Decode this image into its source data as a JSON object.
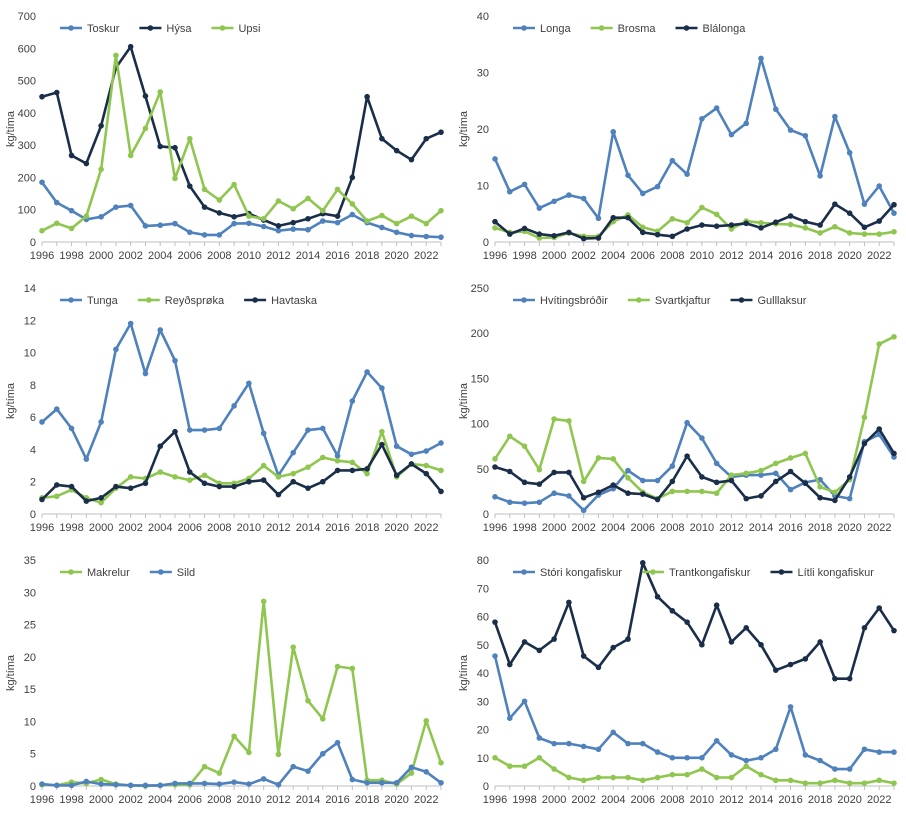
{
  "colors": {
    "blue": "#4f81bd",
    "navy": "#1a2e4a",
    "green": "#8fc64f"
  },
  "chart_data": [
    {
      "type": "line",
      "ylabel": "kg/tíma",
      "ylim": [
        0,
        700
      ],
      "yticks": [
        0,
        100,
        200,
        300,
        400,
        500,
        600,
        700
      ],
      "x": [
        1996,
        1997,
        1998,
        1999,
        2000,
        2001,
        2002,
        2003,
        2004,
        2005,
        2006,
        2007,
        2008,
        2009,
        2010,
        2011,
        2012,
        2013,
        2014,
        2015,
        2016,
        2017,
        2018,
        2019,
        2020,
        2021,
        2022,
        2023
      ],
      "xticks": [
        1996,
        1998,
        2000,
        2002,
        2004,
        2006,
        2008,
        2010,
        2012,
        2014,
        2016,
        2018,
        2020,
        2022
      ],
      "legend": "top",
      "series": [
        {
          "name": "Toskur",
          "color": "#4f81bd",
          "values": [
            185,
            122,
            97,
            70,
            78,
            108,
            113,
            50,
            52,
            57,
            30,
            22,
            22,
            57,
            58,
            48,
            35,
            40,
            38,
            65,
            60,
            85,
            60,
            45,
            30,
            20,
            17,
            15
          ]
        },
        {
          "name": "Hýsa",
          "color": "#1a2e4a",
          "values": [
            450,
            463,
            268,
            243,
            360,
            540,
            605,
            452,
            296,
            292,
            173,
            108,
            90,
            78,
            88,
            68,
            50,
            60,
            72,
            88,
            80,
            200,
            450,
            320,
            283,
            255,
            320,
            340
          ]
        },
        {
          "name": "Upsi",
          "color": "#8fc64f",
          "values": [
            35,
            58,
            42,
            80,
            225,
            578,
            268,
            352,
            465,
            197,
            320,
            163,
            130,
            178,
            80,
            72,
            127,
            103,
            135,
            97,
            163,
            118,
            65,
            82,
            57,
            80,
            57,
            97
          ]
        }
      ]
    },
    {
      "type": "line",
      "ylabel": "kg/tíma",
      "ylim": [
        0,
        40
      ],
      "yticks": [
        0,
        10,
        20,
        30,
        40
      ],
      "x": [
        1996,
        1997,
        1998,
        1999,
        2000,
        2001,
        2002,
        2003,
        2004,
        2005,
        2006,
        2007,
        2008,
        2009,
        2010,
        2011,
        2012,
        2013,
        2014,
        2015,
        2016,
        2017,
        2018,
        2019,
        2020,
        2021,
        2022,
        2023
      ],
      "xticks": [
        1996,
        1998,
        2000,
        2002,
        2004,
        2006,
        2008,
        2010,
        2012,
        2014,
        2016,
        2018,
        2020,
        2022
      ],
      "legend": "top",
      "series": [
        {
          "name": "Longa",
          "color": "#4f81bd",
          "values": [
            14.7,
            8.9,
            10.2,
            6.0,
            7.2,
            8.3,
            7.7,
            4.2,
            19.5,
            11.8,
            8.6,
            9.8,
            14.4,
            12.0,
            21.8,
            23.7,
            19.0,
            21.0,
            32.5,
            23.5,
            19.8,
            18.8,
            11.7,
            22.2,
            15.8,
            6.7,
            9.9,
            5.1
          ]
        },
        {
          "name": "Brosma",
          "color": "#8fc64f",
          "values": [
            2.5,
            1.7,
            1.9,
            0.7,
            0.8,
            1.6,
            1.0,
            1.0,
            3.6,
            4.8,
            2.6,
            1.9,
            4.1,
            3.4,
            6.1,
            4.9,
            2.3,
            3.7,
            3.4,
            3.2,
            3.1,
            2.5,
            1.6,
            2.7,
            1.6,
            1.4,
            1.4,
            1.8
          ]
        },
        {
          "name": "Blálonga",
          "color": "#1a2e4a",
          "values": [
            3.6,
            1.4,
            2.4,
            1.4,
            1.1,
            1.7,
            0.6,
            0.7,
            4.3,
            4.3,
            1.7,
            1.3,
            1.0,
            2.3,
            3.0,
            2.8,
            3.0,
            3.3,
            2.5,
            3.5,
            4.6,
            3.6,
            3.0,
            6.7,
            5.1,
            2.6,
            3.7,
            6.6
          ]
        }
      ]
    },
    {
      "type": "line",
      "ylabel": "kg/tíma",
      "ylim": [
        0,
        14
      ],
      "yticks": [
        0,
        2,
        4,
        6,
        8,
        10,
        12,
        14
      ],
      "x": [
        1996,
        1997,
        1998,
        1999,
        2000,
        2001,
        2002,
        2003,
        2004,
        2005,
        2006,
        2007,
        2008,
        2009,
        2010,
        2011,
        2012,
        2013,
        2014,
        2015,
        2016,
        2017,
        2018,
        2019,
        2020,
        2021,
        2022,
        2023
      ],
      "xticks": [
        1996,
        1998,
        2000,
        2002,
        2004,
        2006,
        2008,
        2010,
        2012,
        2014,
        2016,
        2018,
        2020,
        2022
      ],
      "legend": "top",
      "series": [
        {
          "name": "Tunga",
          "color": "#4f81bd",
          "values": [
            5.7,
            6.5,
            5.3,
            3.4,
            5.7,
            10.2,
            11.8,
            8.7,
            11.4,
            9.5,
            5.2,
            5.2,
            5.3,
            6.7,
            8.1,
            5.0,
            2.4,
            3.8,
            5.2,
            5.3,
            3.6,
            7.0,
            8.8,
            7.8,
            4.2,
            3.7,
            3.9,
            4.4
          ]
        },
        {
          "name": "Reyðsprøka",
          "color": "#8fc64f",
          "values": [
            1.0,
            1.1,
            1.5,
            1.0,
            0.7,
            1.6,
            2.3,
            2.2,
            2.6,
            2.3,
            2.1,
            2.4,
            1.9,
            1.9,
            2.2,
            3.0,
            2.3,
            2.5,
            2.9,
            3.5,
            3.3,
            3.2,
            2.5,
            5.1,
            2.3,
            3.1,
            3.0,
            2.7
          ]
        },
        {
          "name": "Havtaska",
          "color": "#1a2e4a",
          "values": [
            0.9,
            1.8,
            1.7,
            0.8,
            1.0,
            1.7,
            1.6,
            1.9,
            4.2,
            5.1,
            2.6,
            1.9,
            1.7,
            1.7,
            2.0,
            2.1,
            1.2,
            2.0,
            1.6,
            2.0,
            2.7,
            2.7,
            2.8,
            4.3,
            2.4,
            3.1,
            2.5,
            1.4
          ]
        }
      ]
    },
    {
      "type": "line",
      "ylabel": "kg/tíma",
      "ylim": [
        0,
        250
      ],
      "yticks": [
        0,
        50,
        100,
        150,
        200,
        250
      ],
      "x": [
        1996,
        1997,
        1998,
        1999,
        2000,
        2001,
        2002,
        2003,
        2004,
        2005,
        2006,
        2007,
        2008,
        2009,
        2010,
        2011,
        2012,
        2013,
        2014,
        2015,
        2016,
        2017,
        2018,
        2019,
        2020,
        2021,
        2022,
        2023
      ],
      "xticks": [
        1996,
        1998,
        2000,
        2002,
        2004,
        2006,
        2008,
        2010,
        2012,
        2014,
        2016,
        2018,
        2020,
        2022
      ],
      "legend": "top",
      "series": [
        {
          "name": "Hvítingsbróðir",
          "color": "#4f81bd",
          "values": [
            19,
            13,
            12,
            13,
            23,
            20,
            4,
            21,
            28,
            48,
            37,
            37,
            53,
            101,
            84,
            56,
            41,
            43,
            43,
            45,
            27,
            35,
            38,
            20,
            17,
            80,
            88,
            63
          ]
        },
        {
          "name": "Svartkjaftur",
          "color": "#8fc64f",
          "values": [
            61,
            86,
            75,
            49,
            105,
            103,
            36,
            62,
            61,
            40,
            24,
            17,
            25,
            25,
            25,
            23,
            43,
            45,
            48,
            56,
            62,
            67,
            30,
            24,
            38,
            107,
            188,
            196
          ]
        },
        {
          "name": "Gulllaksur",
          "color": "#1a2e4a",
          "values": [
            52,
            47,
            35,
            33,
            46,
            46,
            18,
            24,
            32,
            23,
            22,
            16,
            36,
            64,
            41,
            35,
            37,
            17,
            20,
            36,
            47,
            34,
            18,
            15,
            41,
            78,
            94,
            67
          ]
        }
      ]
    },
    {
      "type": "line",
      "ylabel": "kg/tíma",
      "ylim": [
        0,
        35
      ],
      "yticks": [
        0,
        5,
        10,
        15,
        20,
        25,
        30,
        35
      ],
      "x": [
        1996,
        1997,
        1998,
        1999,
        2000,
        2001,
        2002,
        2003,
        2004,
        2005,
        2006,
        2007,
        2008,
        2009,
        2010,
        2011,
        2012,
        2013,
        2014,
        2015,
        2016,
        2017,
        2018,
        2019,
        2020,
        2021,
        2022,
        2023
      ],
      "xticks": [
        1996,
        1998,
        2000,
        2002,
        2004,
        2006,
        2008,
        2010,
        2012,
        2014,
        2016,
        2018,
        2020,
        2022
      ],
      "legend": "top",
      "series": [
        {
          "name": "Makrelur",
          "color": "#8fc64f",
          "values": [
            0.2,
            0.1,
            0.6,
            0.4,
            1.0,
            0.3,
            0.1,
            0.0,
            0.1,
            0.2,
            0.2,
            3.0,
            2.0,
            7.7,
            5.2,
            28.6,
            4.9,
            21.5,
            13.2,
            10.4,
            18.5,
            18.2,
            0.9,
            0.9,
            0.3,
            2.0,
            10.1,
            3.6
          ]
        },
        {
          "name": "Sild",
          "color": "#4f81bd",
          "values": [
            0.3,
            0.1,
            0.1,
            0.7,
            0.3,
            0.2,
            0.1,
            0.1,
            0.1,
            0.4,
            0.4,
            0.4,
            0.3,
            0.6,
            0.3,
            1.1,
            0.2,
            3.0,
            2.3,
            5.0,
            6.7,
            1.0,
            0.5,
            0.5,
            0.5,
            2.9,
            2.2,
            0.5
          ]
        }
      ]
    },
    {
      "type": "line",
      "ylabel": "kg/tíma",
      "ylim": [
        0,
        80
      ],
      "yticks": [
        0,
        10,
        20,
        30,
        40,
        50,
        60,
        70,
        80
      ],
      "x": [
        1996,
        1997,
        1998,
        1999,
        2000,
        2001,
        2002,
        2003,
        2004,
        2005,
        2006,
        2007,
        2008,
        2009,
        2010,
        2011,
        2012,
        2013,
        2014,
        2015,
        2016,
        2017,
        2018,
        2019,
        2020,
        2021,
        2022,
        2023
      ],
      "xticks": [
        1996,
        1998,
        2000,
        2002,
        2004,
        2006,
        2008,
        2010,
        2012,
        2014,
        2016,
        2018,
        2020,
        2022
      ],
      "legend": "top",
      "series": [
        {
          "name": "Stóri kongafiskur",
          "color": "#4f81bd",
          "values": [
            46,
            24,
            30,
            17,
            15,
            15,
            14,
            13,
            19,
            15,
            15,
            12,
            10,
            10,
            10,
            16,
            11,
            9,
            10,
            13,
            28,
            11,
            9,
            6,
            6,
            13,
            12,
            12
          ]
        },
        {
          "name": "Trantkongafiskur",
          "color": "#8fc64f",
          "values": [
            10,
            7,
            7,
            10,
            6,
            3,
            2,
            3,
            3,
            3,
            2,
            3,
            4,
            4,
            6,
            3,
            3,
            7,
            4,
            2,
            2,
            1,
            1,
            2,
            1,
            1,
            2,
            1
          ]
        },
        {
          "name": "Lítli kongafiskur",
          "color": "#1a2e4a",
          "values": [
            58,
            43,
            51,
            48,
            52,
            65,
            46,
            42,
            49,
            52,
            79,
            67,
            62,
            58,
            50,
            64,
            51,
            56,
            50,
            41,
            43,
            45,
            51,
            38,
            38,
            56,
            63,
            55
          ]
        }
      ]
    }
  ]
}
